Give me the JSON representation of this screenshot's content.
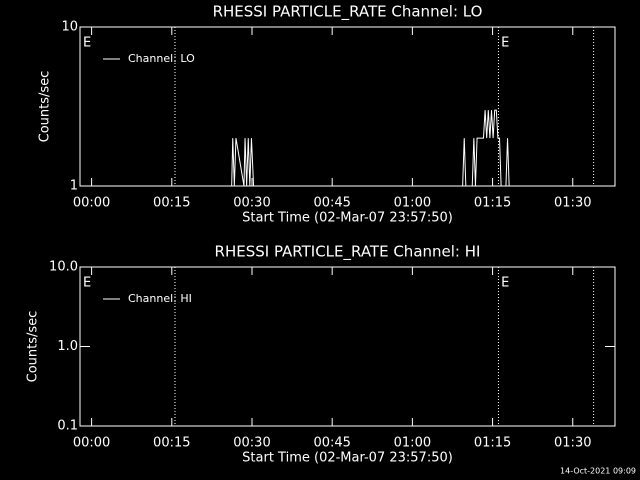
{
  "chart_data": [
    {
      "type": "line",
      "title": "RHESSI PARTICLE_RATE Channel: LO",
      "ylabel": "Counts/sec",
      "xlabel": "Start Time (02-Mar-07 23:57:50)",
      "log_y": true,
      "ylim": [
        1,
        10
      ],
      "yticks": [
        1,
        10
      ],
      "xlim": [
        -2.17,
        97.9
      ],
      "xticks": [
        {
          "value": 0,
          "label": "00:00"
        },
        {
          "value": 15,
          "label": "00:15"
        },
        {
          "value": 30,
          "label": "00:30"
        },
        {
          "value": 45,
          "label": "00:45"
        },
        {
          "value": 60,
          "label": "01:00"
        },
        {
          "value": 75,
          "label": "01:15"
        },
        {
          "value": 90,
          "label": "01:30"
        }
      ],
      "vlines": [
        15.6,
        76.1,
        93.9
      ],
      "annotations": [
        {
          "text": "E",
          "x": -1.6
        },
        {
          "text": "E",
          "x": 76.6
        }
      ],
      "series": [
        {
          "name": "Channel: LO",
          "color": "#ffffff",
          "x": [
            -2.17,
            26.2,
            26.4,
            26.7,
            27.0,
            28.5,
            28.7,
            29.0,
            29.3,
            29.6,
            29.9,
            30.3,
            69.4,
            69.7,
            70.0,
            71.2,
            71.5,
            71.8,
            72.1,
            73.0,
            73.3,
            73.6,
            73.9,
            74.2,
            74.5,
            74.8,
            75.1,
            75.4,
            75.7,
            76.0,
            76.3,
            76.6,
            77.5,
            77.8,
            78.1,
            78.4,
            97.9
          ],
          "values": [
            1,
            1,
            2,
            1,
            2,
            1,
            2,
            1,
            2,
            1,
            2,
            1,
            1,
            2,
            1,
            1,
            2,
            1,
            2,
            2,
            2,
            3,
            2,
            3,
            2,
            3,
            2,
            3,
            3,
            2,
            2,
            1,
            1,
            2,
            1,
            1,
            1
          ]
        }
      ]
    },
    {
      "type": "line",
      "title": "RHESSI PARTICLE_RATE Channel: HI",
      "ylabel": "Counts/sec",
      "xlabel": "Start Time (02-Mar-07 23:57:50)",
      "log_y": true,
      "ylim": [
        0.1,
        10
      ],
      "yticks": [
        0.1,
        {
          "value": 1,
          "label": "1.0"
        },
        {
          "value": 10,
          "label": "10.0"
        }
      ],
      "xlim": [
        -2.17,
        97.9
      ],
      "xticks": [
        {
          "value": 0,
          "label": "00:00"
        },
        {
          "value": 15,
          "label": "00:15"
        },
        {
          "value": 30,
          "label": "00:30"
        },
        {
          "value": 45,
          "label": "00:45"
        },
        {
          "value": 60,
          "label": "01:00"
        },
        {
          "value": 75,
          "label": "01:15"
        },
        {
          "value": 90,
          "label": "01:30"
        }
      ],
      "vlines": [
        15.6,
        76.1,
        93.9
      ],
      "annotations": [
        {
          "text": "E",
          "x": -1.6
        },
        {
          "text": "E",
          "x": 76.6
        }
      ],
      "series": [
        {
          "name": "Channel: HI",
          "color": "#ffffff",
          "x": [],
          "values": []
        }
      ]
    }
  ],
  "footer": "14-Oct-2021 09:09"
}
